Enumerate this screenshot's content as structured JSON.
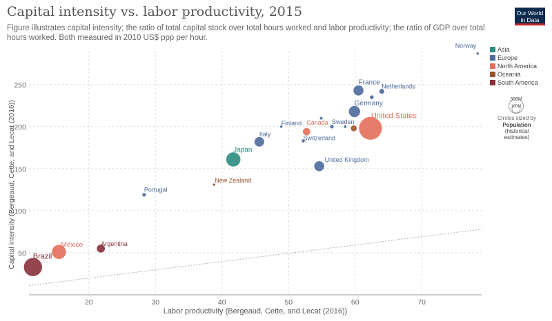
{
  "header": {
    "title": "Capital intensity vs. labor productivity, 2015",
    "subtitle": "Figure illustrates capital intensity; the ratio of total capital stock over total hours worked and labor productivity; the ratio of GDP over total hours worked. Both measured in 2010 US$ ppp per hour.",
    "logo_line1": "Our World",
    "logo_line2": "in Data"
  },
  "size_legend": {
    "big_label": "300M",
    "small_label": "100M",
    "caption_line1": "Circles sized by",
    "caption_line2": "Population",
    "caption_line3": "(historical",
    "caption_line4": "estimates)"
  },
  "chart_data": {
    "type": "scatter",
    "xlabel": "Labor productivity (Bergeaud, Cette, and Lecat (2016))",
    "ylabel": "Capital intensity (Bergeaud, Cette, and Lecat (2016))",
    "xlim": [
      11,
      79
    ],
    "ylim": [
      0,
      290
    ],
    "xticks": [
      20,
      30,
      40,
      50,
      60,
      70
    ],
    "yticks": [
      50,
      100,
      150,
      200,
      250
    ],
    "grid": true,
    "legend_position": "right",
    "legend": [
      {
        "name": "Asia",
        "color": "#2a8c82"
      },
      {
        "name": "Europe",
        "color": "#4c6a9c"
      },
      {
        "name": "North America",
        "color": "#e56e5a"
      },
      {
        "name": "Oceania",
        "color": "#a2559c"
      },
      {
        "name": "South America",
        "color": "#883039"
      }
    ],
    "oceania_color": "#9a5129",
    "trend_line": {
      "x": [
        11,
        79
      ],
      "y": [
        11,
        78
      ]
    },
    "points": [
      {
        "label": "Norway",
        "x": 78.4,
        "y": 287,
        "pop_m": 5,
        "region": "Europe",
        "show_label": true
      },
      {
        "label": "Netherlands",
        "x": 64.0,
        "y": 242,
        "pop_m": 17,
        "region": "Europe",
        "show_label": true
      },
      {
        "label": "France",
        "x": 60.5,
        "y": 243,
        "pop_m": 66,
        "region": "Europe",
        "show_label": true
      },
      {
        "label": "",
        "x": 62.5,
        "y": 235,
        "pop_m": 11,
        "region": "Europe",
        "show_label": false
      },
      {
        "label": "Germany",
        "x": 59.9,
        "y": 218,
        "pop_m": 81,
        "region": "Europe",
        "show_label": true
      },
      {
        "label": "United States",
        "x": 62.3,
        "y": 198,
        "pop_m": 321,
        "region": "North America",
        "show_label": true
      },
      {
        "label": "",
        "x": 59.8,
        "y": 198,
        "pop_m": 24,
        "region": "Oceania",
        "show_label": false
      },
      {
        "label": "",
        "x": 58.5,
        "y": 200,
        "pop_m": 6,
        "region": "Europe",
        "show_label": false
      },
      {
        "label": "Sweden",
        "x": 56.5,
        "y": 200,
        "pop_m": 10,
        "region": "Europe",
        "show_label": true
      },
      {
        "label": "",
        "x": 54.9,
        "y": 210,
        "pop_m": 6,
        "region": "Europe",
        "show_label": false
      },
      {
        "label": "Canada",
        "x": 52.7,
        "y": 194,
        "pop_m": 36,
        "region": "North America",
        "show_label": true
      },
      {
        "label": "Switzerland",
        "x": 52.2,
        "y": 183,
        "pop_m": 8,
        "region": "Europe",
        "show_label": true
      },
      {
        "label": "Finland",
        "x": 48.9,
        "y": 200,
        "pop_m": 5,
        "region": "Europe",
        "show_label": true
      },
      {
        "label": "Italy",
        "x": 45.6,
        "y": 182,
        "pop_m": 60,
        "region": "Europe",
        "show_label": true
      },
      {
        "label": "United Kingdom",
        "x": 54.6,
        "y": 153,
        "pop_m": 65,
        "region": "Europe",
        "show_label": true
      },
      {
        "label": "Japan",
        "x": 41.7,
        "y": 161,
        "pop_m": 127,
        "region": "Asia",
        "show_label": true
      },
      {
        "label": "New Zealand",
        "x": 38.8,
        "y": 131,
        "pop_m": 4.6,
        "region": "Oceania",
        "show_label": true
      },
      {
        "label": "Portugal",
        "x": 28.3,
        "y": 119,
        "pop_m": 10,
        "region": "Europe",
        "show_label": true
      },
      {
        "label": "Argentina",
        "x": 21.8,
        "y": 55,
        "pop_m": 43,
        "region": "South America",
        "show_label": true
      },
      {
        "label": "Mexico",
        "x": 15.5,
        "y": 51,
        "pop_m": 125,
        "region": "North America",
        "show_label": true
      },
      {
        "label": "Brazil",
        "x": 11.6,
        "y": 33,
        "pop_m": 205,
        "region": "South America",
        "show_label": true
      }
    ]
  }
}
